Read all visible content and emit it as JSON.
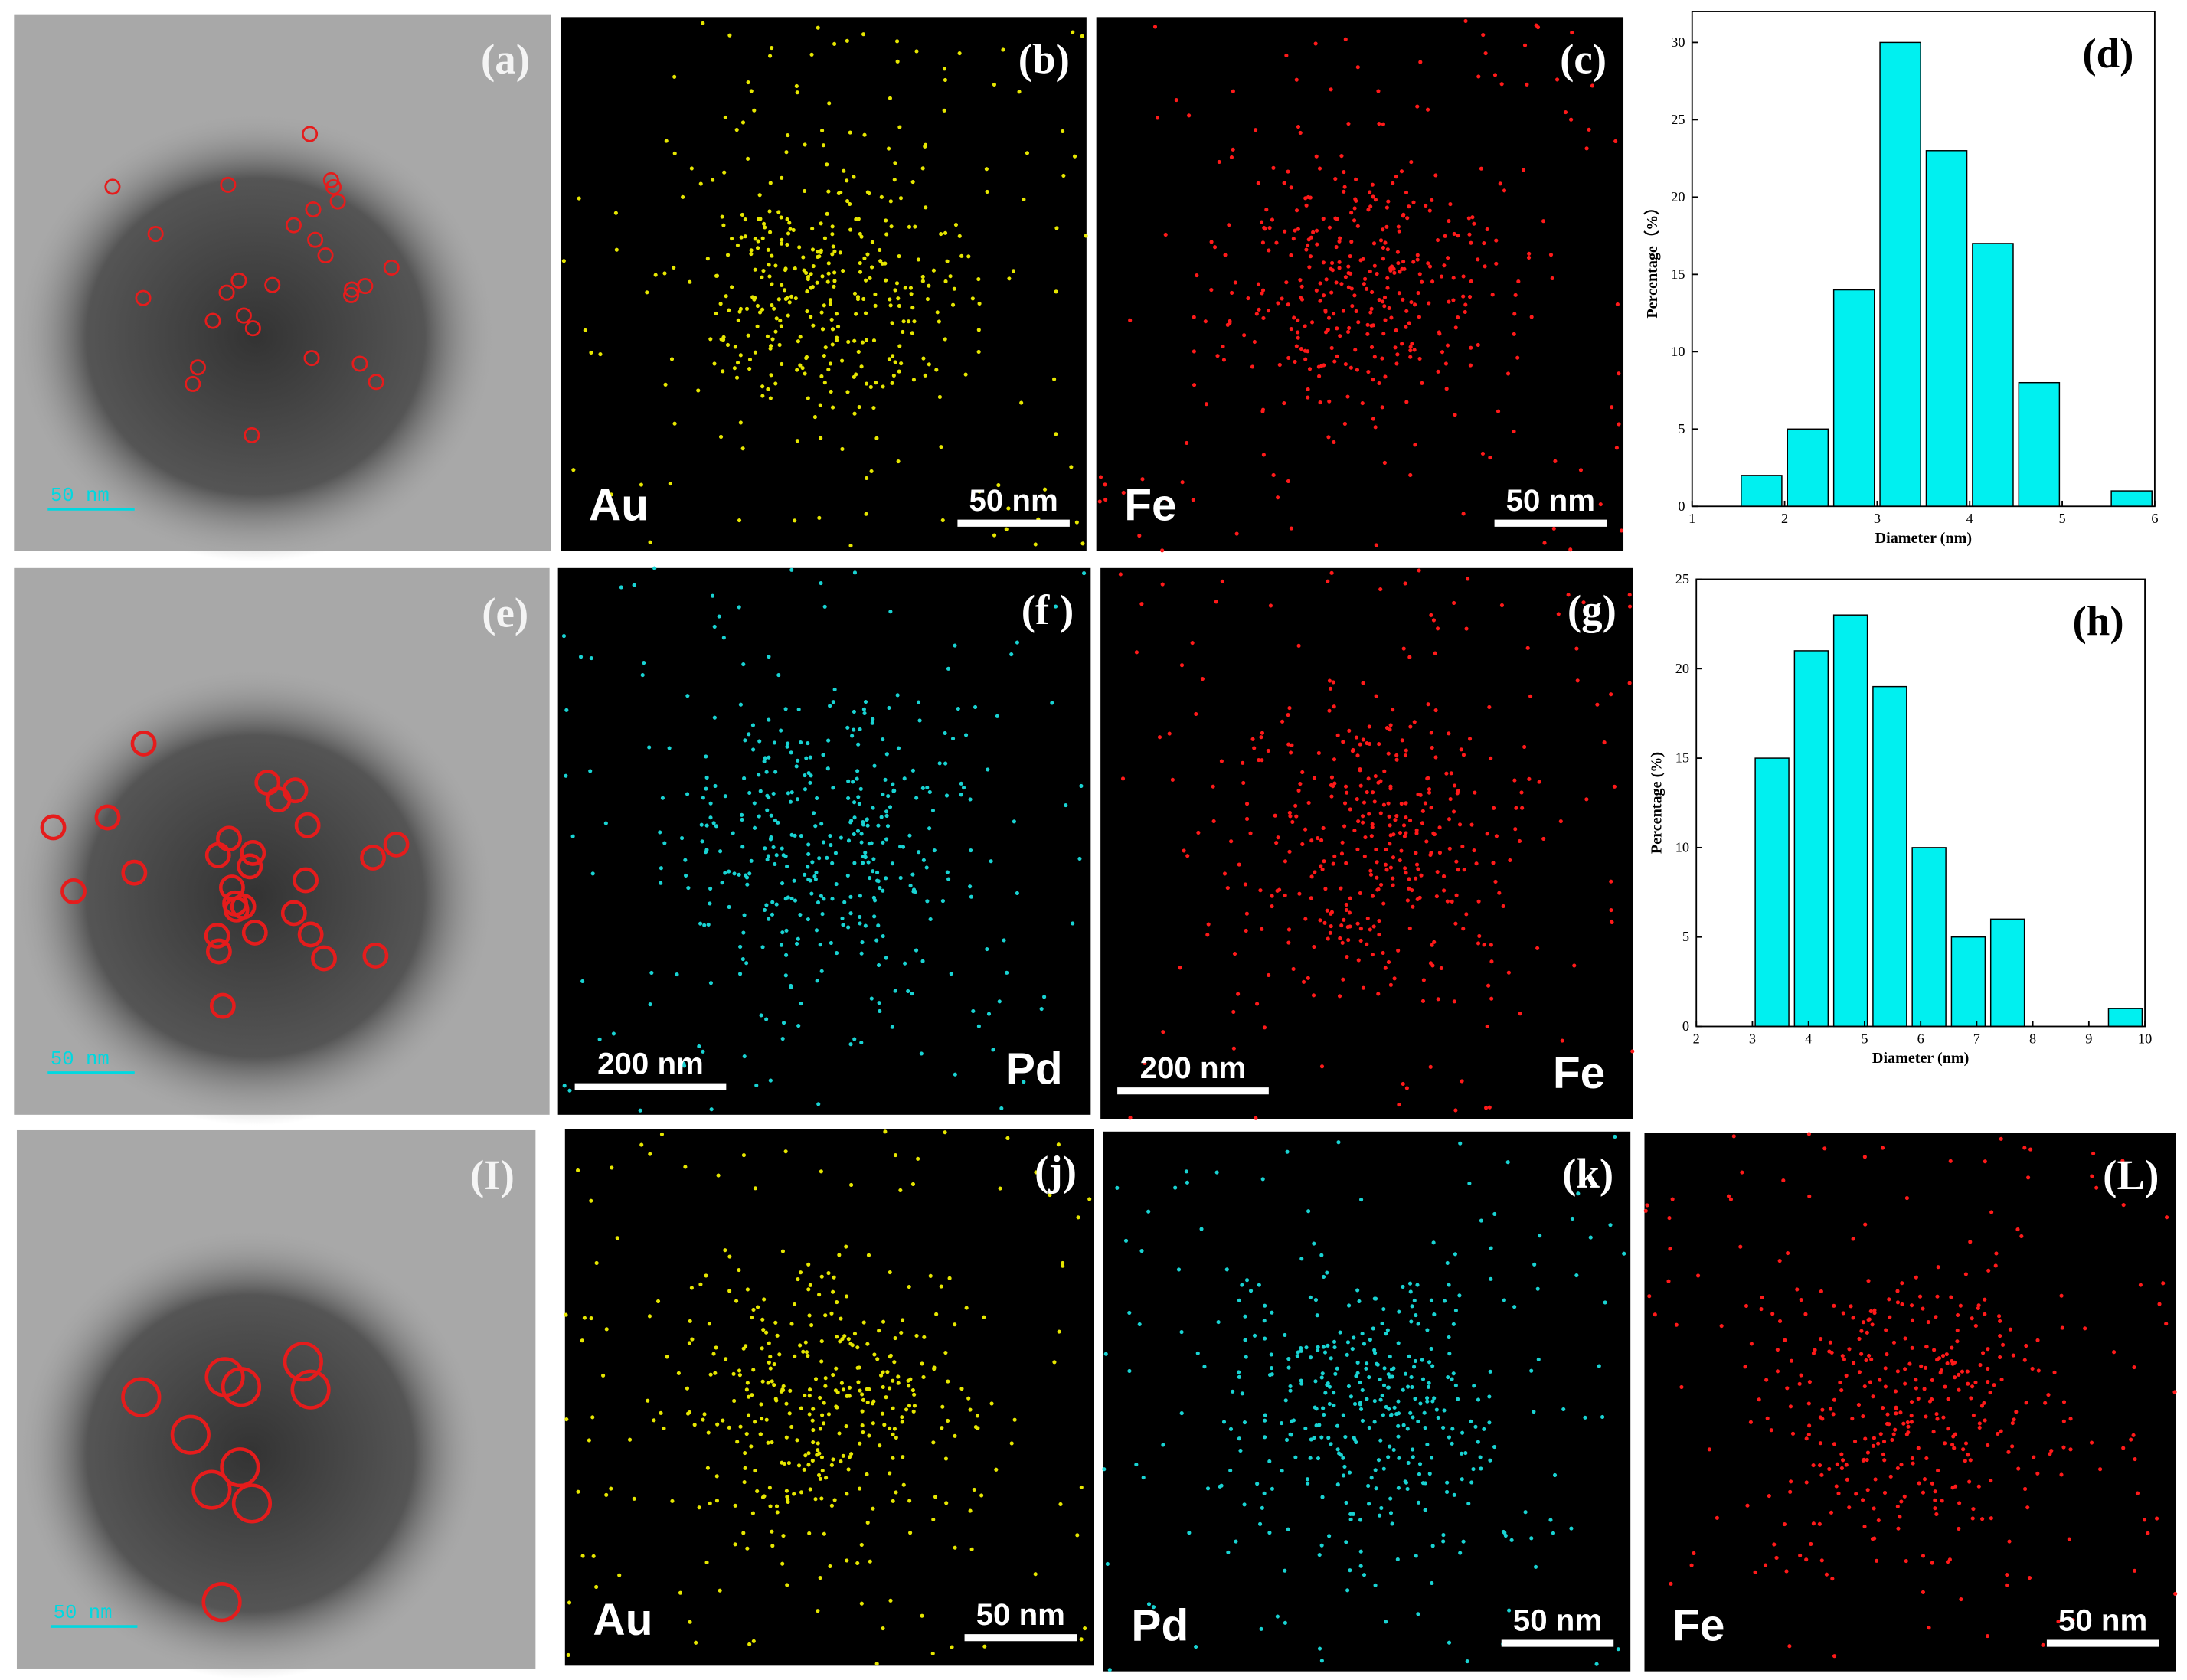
{
  "panels": [
    {
      "label": "(a)",
      "scale_bar": "50 nm"
    },
    {
      "label": "(b)",
      "element": "Au",
      "scale_bar": "50 nm",
      "color": "#e6e600"
    },
    {
      "label": "(c)",
      "element": "Fe",
      "scale_bar": "50 nm",
      "color": "#ff1a1a"
    },
    {
      "label": "(e)",
      "scale_bar": "50 nm"
    },
    {
      "label": "(f )",
      "element": "Pd",
      "scale_bar": "200 nm",
      "color": "#19d3d3"
    },
    {
      "label": "(g)",
      "element": "Fe",
      "scale_bar": "200 nm",
      "color": "#ff1a1a"
    },
    {
      "label": "(I)",
      "scale_bar": "50 nm"
    },
    {
      "label": "(j)",
      "element": "Au",
      "scale_bar": "50 nm",
      "color": "#e6e600"
    },
    {
      "label": "(k)",
      "element": "Pd",
      "scale_bar": "50 nm",
      "color": "#19d3d3"
    },
    {
      "label": "(L)",
      "element": "Fe",
      "scale_bar": "50 nm",
      "color": "#ff1a1a"
    }
  ],
  "chart_data": [
    {
      "type": "histogram",
      "label": "(d)",
      "x_label": "Diameter (nm)",
      "y_label": "Percentage（%）",
      "bins": [
        1.5,
        2,
        2.5,
        3,
        3.5,
        4,
        4.5,
        5,
        5.5,
        6
      ],
      "values": [
        2,
        5,
        14,
        30,
        23,
        17,
        8,
        0,
        1
      ],
      "color": "#00f0f0",
      "xlim": [
        1,
        6
      ],
      "xticks": [
        1,
        2,
        3,
        4,
        5,
        6
      ],
      "ylim": [
        0,
        32
      ],
      "yticks": [
        0,
        5,
        10,
        15,
        20,
        25,
        30
      ]
    },
    {
      "type": "histogram",
      "label": "(h)",
      "x_label": "Diameter (nm)",
      "y_label": "Percentage (%)",
      "bins": [
        3,
        3.7,
        4.4,
        5.1,
        5.8,
        6.5,
        7.2,
        7.9,
        8.6,
        9.3,
        10
      ],
      "values": [
        15,
        21,
        23,
        19,
        10,
        5,
        6,
        0,
        0,
        1
      ],
      "color": "#00f0f0",
      "xlim": [
        2,
        10
      ],
      "xticks": [
        2,
        3,
        4,
        5,
        6,
        7,
        8,
        9,
        10
      ],
      "ylim": [
        0,
        25
      ],
      "yticks": [
        0,
        5,
        10,
        15,
        20,
        25
      ]
    }
  ]
}
